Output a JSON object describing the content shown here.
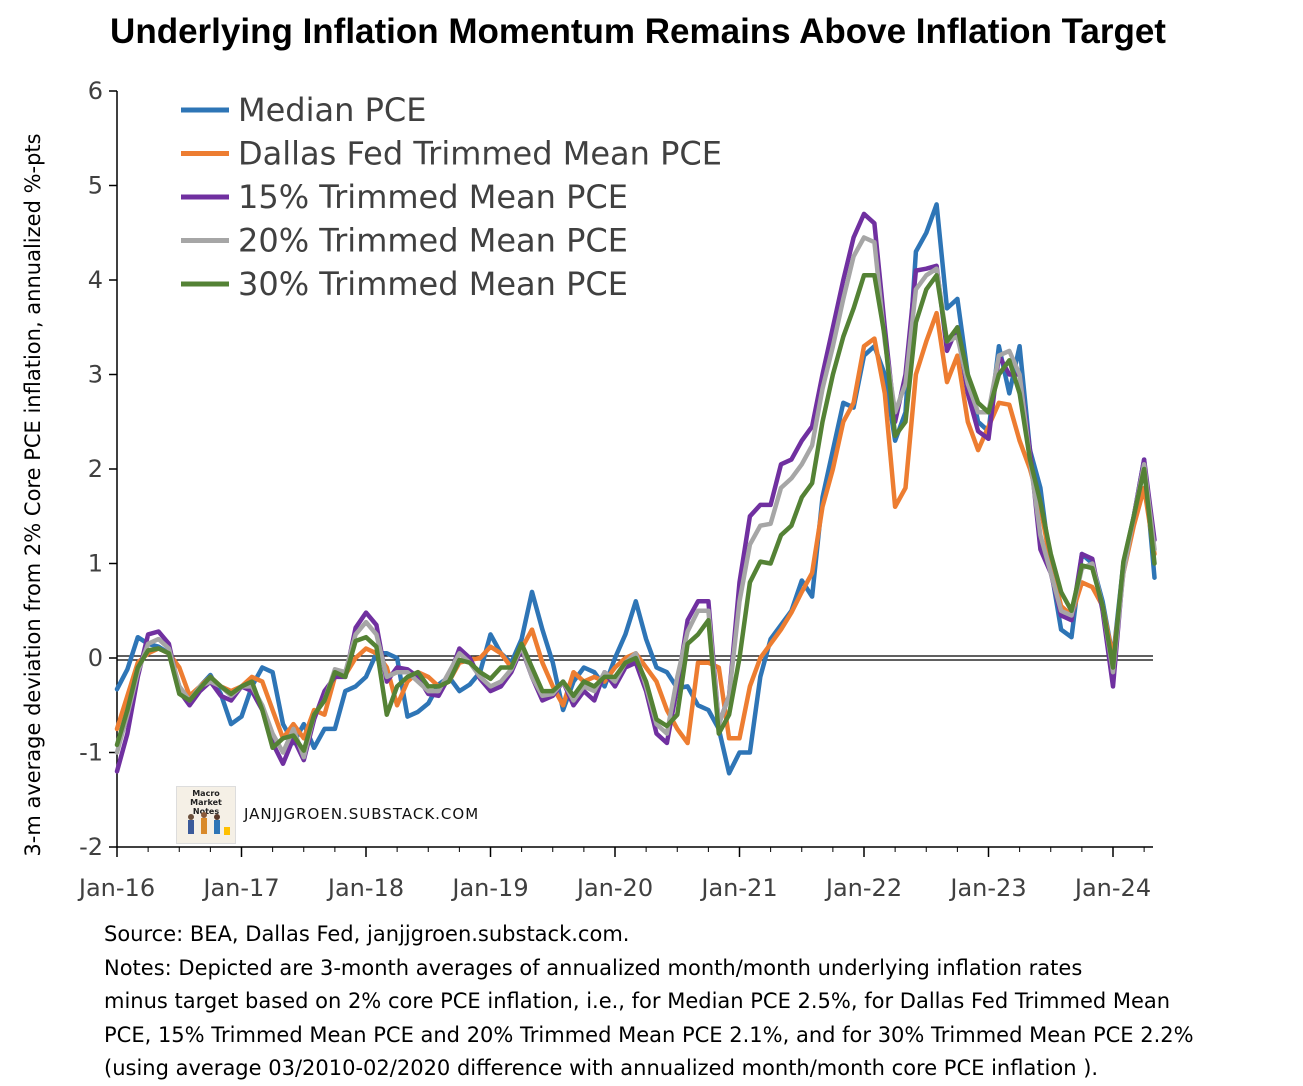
{
  "title": "Underlying Inflation Momentum Remains Above Inflation Target",
  "watermark": {
    "logo_text": "Macro Market Notes",
    "site": "JANJJGROEN.SUBSTACK.COM"
  },
  "notes": {
    "source": "Source: BEA, Dallas Fed, janjjgroen.substack.com.",
    "line1": "Notes: Depicted are 3-month averages of annualized month/month underlying inflation rates",
    "line2": "minus target based on 2% core PCE inflation, i.e., for Median PCE 2.5%, for Dallas Fed Trimmed Mean",
    "line3": "PCE, 15% Trimmed Mean PCE and 20% Trimmed Mean PCE 2.1%, and for 30% Trimmed Mean PCE 2.2%",
    "line4": "(using average 03/2010-02/2020 difference with annualized month/month core PCE inflation )."
  },
  "chart_data": {
    "type": "line",
    "ylabel": "3-m average deviation from 2% Core PCE inflation, annualized %-pts",
    "xlabel": "",
    "ylim": [
      -2,
      6
    ],
    "yticks": [
      -2,
      -1,
      0,
      1,
      2,
      3,
      4,
      5,
      6
    ],
    "xticks": [
      "Jan-16",
      "Jan-17",
      "Jan-18",
      "Jan-19",
      "Jan-20",
      "Jan-21",
      "Jan-22",
      "Jan-23",
      "Jan-24"
    ],
    "x_start": "2016-01",
    "legend_position": "top-left",
    "zero_line": true,
    "series": [
      {
        "name": "Median PCE",
        "color": "#2e75b6",
        "values": [
          -0.33,
          -0.12,
          0.22,
          0.15,
          0.12,
          0.05,
          -0.3,
          -0.45,
          -0.3,
          -0.18,
          -0.38,
          -0.7,
          -0.62,
          -0.3,
          -0.1,
          -0.15,
          -0.7,
          -0.9,
          -0.7,
          -0.95,
          -0.75,
          -0.75,
          -0.35,
          -0.3,
          -0.2,
          0.05,
          0.05,
          0.0,
          -0.62,
          -0.57,
          -0.48,
          -0.28,
          -0.2,
          -0.35,
          -0.28,
          -0.15,
          0.25,
          0.05,
          -0.05,
          0.2,
          0.7,
          0.3,
          -0.05,
          -0.55,
          -0.25,
          -0.1,
          -0.15,
          -0.3,
          0.0,
          0.25,
          0.6,
          0.2,
          -0.1,
          -0.15,
          -0.32,
          -0.3,
          -0.5,
          -0.55,
          -0.75,
          -1.22,
          -1.0,
          -1.0,
          -0.2,
          0.2,
          0.35,
          0.5,
          0.82,
          0.65,
          1.7,
          2.2,
          2.7,
          2.65,
          3.2,
          3.3,
          3.0,
          2.3,
          2.6,
          4.3,
          4.5,
          4.8,
          3.7,
          3.8,
          3.0,
          2.5,
          2.4,
          3.3,
          2.8,
          3.3,
          2.2,
          1.8,
          0.95,
          0.3,
          0.22,
          1.1,
          1.0,
          0.6,
          0.0,
          1.0,
          1.5,
          2.1,
          0.85
        ]
      },
      {
        "name": "Dallas Fed Trimmed Mean PCE",
        "color": "#ed7d31",
        "values": [
          -0.75,
          -0.4,
          -0.05,
          0.05,
          0.1,
          0.05,
          -0.1,
          -0.4,
          -0.3,
          -0.2,
          -0.3,
          -0.35,
          -0.3,
          -0.2,
          -0.25,
          -0.55,
          -0.85,
          -0.7,
          -0.85,
          -0.55,
          -0.6,
          -0.2,
          -0.18,
          0.0,
          0.1,
          0.05,
          -0.1,
          -0.5,
          -0.25,
          -0.15,
          -0.2,
          -0.3,
          -0.25,
          -0.05,
          -0.02,
          0.0,
          0.12,
          0.05,
          -0.1,
          0.1,
          0.3,
          -0.05,
          -0.3,
          -0.5,
          -0.15,
          -0.25,
          -0.2,
          -0.25,
          -0.1,
          0.0,
          0.05,
          -0.1,
          -0.25,
          -0.55,
          -0.75,
          -0.9,
          -0.05,
          -0.05,
          -0.1,
          -0.85,
          -0.85,
          -0.3,
          0.0,
          0.15,
          0.3,
          0.48,
          0.7,
          0.9,
          1.6,
          2.0,
          2.5,
          2.7,
          3.3,
          3.38,
          2.8,
          1.6,
          1.8,
          3.0,
          3.35,
          3.65,
          2.92,
          3.2,
          2.5,
          2.2,
          2.45,
          2.7,
          2.68,
          2.3,
          2.0,
          1.6,
          1.0,
          0.55,
          0.45,
          0.8,
          0.75,
          0.55,
          0.0,
          0.9,
          1.4,
          1.8,
          1.1
        ]
      },
      {
        "name": "15% Trimmed Mean PCE",
        "color": "#7030a0",
        "values": [
          -1.2,
          -0.8,
          -0.2,
          0.25,
          0.28,
          0.15,
          -0.35,
          -0.5,
          -0.35,
          -0.25,
          -0.4,
          -0.45,
          -0.3,
          -0.35,
          -0.55,
          -0.9,
          -1.12,
          -0.85,
          -1.08,
          -0.65,
          -0.35,
          -0.2,
          -0.2,
          0.32,
          0.48,
          0.35,
          -0.25,
          -0.1,
          -0.12,
          -0.2,
          -0.38,
          -0.4,
          -0.2,
          0.1,
          0.0,
          -0.22,
          -0.35,
          -0.3,
          -0.15,
          0.1,
          -0.2,
          -0.45,
          -0.4,
          -0.25,
          -0.5,
          -0.35,
          -0.45,
          -0.15,
          -0.3,
          -0.1,
          -0.05,
          -0.35,
          -0.8,
          -0.9,
          -0.3,
          0.4,
          0.6,
          0.6,
          -0.7,
          -0.4,
          0.8,
          1.5,
          1.62,
          1.62,
          2.05,
          2.1,
          2.3,
          2.45,
          3.0,
          3.5,
          4.0,
          4.45,
          4.7,
          4.6,
          3.5,
          2.5,
          3.0,
          4.1,
          4.12,
          4.15,
          3.25,
          3.5,
          2.8,
          2.4,
          2.32,
          3.2,
          3.0,
          3.0,
          2.2,
          1.15,
          0.9,
          0.45,
          0.4,
          1.1,
          1.05,
          0.5,
          -0.3,
          0.95,
          1.5,
          2.1,
          1.25
        ]
      },
      {
        "name": "20% Trimmed Mean PCE",
        "color": "#a6a6a6",
        "values": [
          -1.0,
          -0.6,
          -0.15,
          0.15,
          0.2,
          0.1,
          -0.3,
          -0.45,
          -0.3,
          -0.25,
          -0.3,
          -0.4,
          -0.3,
          -0.3,
          -0.5,
          -0.8,
          -1.0,
          -0.75,
          -1.05,
          -0.6,
          -0.45,
          -0.12,
          -0.15,
          0.25,
          0.38,
          0.25,
          -0.2,
          -0.15,
          -0.15,
          -0.25,
          -0.35,
          -0.35,
          -0.15,
          0.05,
          -0.05,
          -0.2,
          -0.3,
          -0.25,
          -0.12,
          0.12,
          -0.2,
          -0.4,
          -0.38,
          -0.25,
          -0.45,
          -0.3,
          -0.35,
          -0.15,
          -0.25,
          -0.05,
          0.05,
          -0.3,
          -0.7,
          -0.8,
          -0.2,
          0.28,
          0.5,
          0.5,
          -0.7,
          -0.4,
          0.6,
          1.2,
          1.4,
          1.42,
          1.8,
          1.9,
          2.05,
          2.25,
          2.85,
          3.3,
          3.8,
          4.25,
          4.45,
          4.4,
          3.35,
          2.6,
          2.9,
          3.9,
          4.05,
          4.12,
          3.35,
          3.4,
          2.9,
          2.6,
          2.6,
          3.2,
          3.25,
          3.0,
          2.1,
          1.3,
          0.9,
          0.5,
          0.45,
          0.95,
          1.0,
          0.55,
          -0.15,
          0.9,
          1.5,
          2.05,
          1.15
        ]
      },
      {
        "name": "30% Trimmed Mean PCE",
        "color": "#548235",
        "values": [
          -0.92,
          -0.55,
          -0.1,
          0.08,
          0.1,
          0.05,
          -0.38,
          -0.45,
          -0.32,
          -0.2,
          -0.3,
          -0.38,
          -0.3,
          -0.25,
          -0.55,
          -0.95,
          -0.85,
          -0.82,
          -0.98,
          -0.6,
          -0.45,
          -0.15,
          -0.2,
          0.18,
          0.22,
          0.12,
          -0.6,
          -0.3,
          -0.2,
          -0.15,
          -0.3,
          -0.3,
          -0.25,
          -0.02,
          -0.05,
          -0.15,
          -0.22,
          -0.1,
          -0.1,
          0.15,
          -0.1,
          -0.35,
          -0.35,
          -0.25,
          -0.4,
          -0.25,
          -0.3,
          -0.2,
          -0.2,
          -0.05,
          0.0,
          -0.25,
          -0.65,
          -0.72,
          -0.6,
          0.15,
          0.25,
          0.4,
          -0.8,
          -0.6,
          0.0,
          0.8,
          1.02,
          1.0,
          1.3,
          1.4,
          1.7,
          1.85,
          2.5,
          3.0,
          3.4,
          3.7,
          4.05,
          4.05,
          3.4,
          2.35,
          2.5,
          3.55,
          3.9,
          4.05,
          3.35,
          3.5,
          3.0,
          2.7,
          2.6,
          3.0,
          3.15,
          2.8,
          2.1,
          1.65,
          1.1,
          0.7,
          0.5,
          0.98,
          0.95,
          0.55,
          -0.1,
          1.02,
          1.5,
          2.0,
          1.0
        ]
      }
    ]
  }
}
